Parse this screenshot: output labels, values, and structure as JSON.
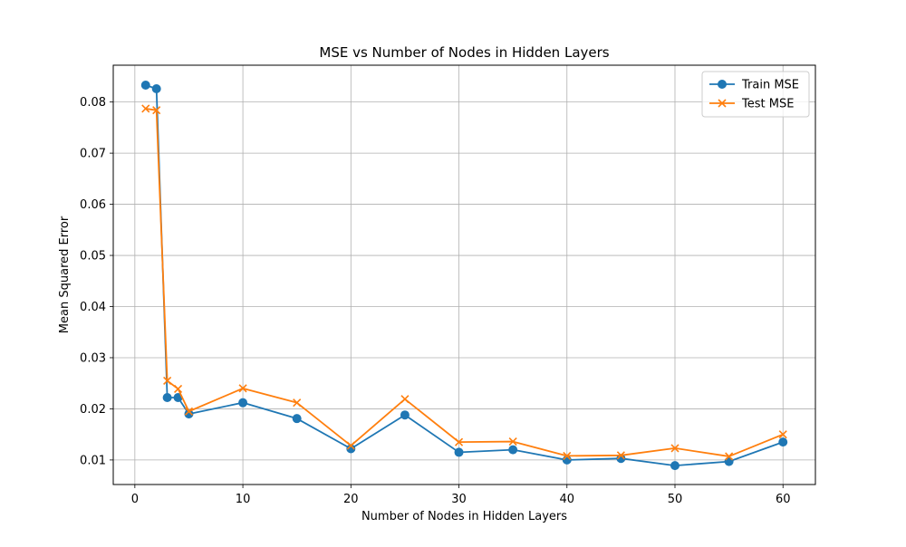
{
  "chart_data": {
    "type": "line",
    "title": "MSE vs Number of Nodes in Hidden Layers",
    "xlabel": "Number of Nodes in Hidden Layers",
    "ylabel": "Mean Squared Error",
    "xlim": [
      -2.0,
      63.0
    ],
    "ylim": [
      0.0052,
      0.0872
    ],
    "x_ticks": [
      0,
      10,
      20,
      30,
      40,
      50,
      60
    ],
    "y_ticks": [
      0.01,
      0.02,
      0.03,
      0.04,
      0.05,
      0.06,
      0.07,
      0.08
    ],
    "grid": true,
    "legend_position": "upper right",
    "x": [
      1,
      2,
      3,
      4,
      5,
      10,
      15,
      20,
      25,
      30,
      35,
      40,
      45,
      50,
      55,
      60
    ],
    "series": [
      {
        "name": "Train MSE",
        "marker": "circle",
        "color": "#1f77b4",
        "values": [
          0.0833,
          0.0826,
          0.0222,
          0.0222,
          0.019,
          0.0212,
          0.0181,
          0.0122,
          0.0188,
          0.0115,
          0.012,
          0.01,
          0.0103,
          0.0089,
          0.0097,
          0.0135
        ]
      },
      {
        "name": "Test MSE",
        "marker": "x",
        "color": "#ff7f0e",
        "values": [
          0.0787,
          0.0784,
          0.0255,
          0.0239,
          0.0195,
          0.024,
          0.0212,
          0.0128,
          0.0219,
          0.0135,
          0.0136,
          0.0108,
          0.0109,
          0.0123,
          0.0107,
          0.015
        ]
      }
    ]
  }
}
